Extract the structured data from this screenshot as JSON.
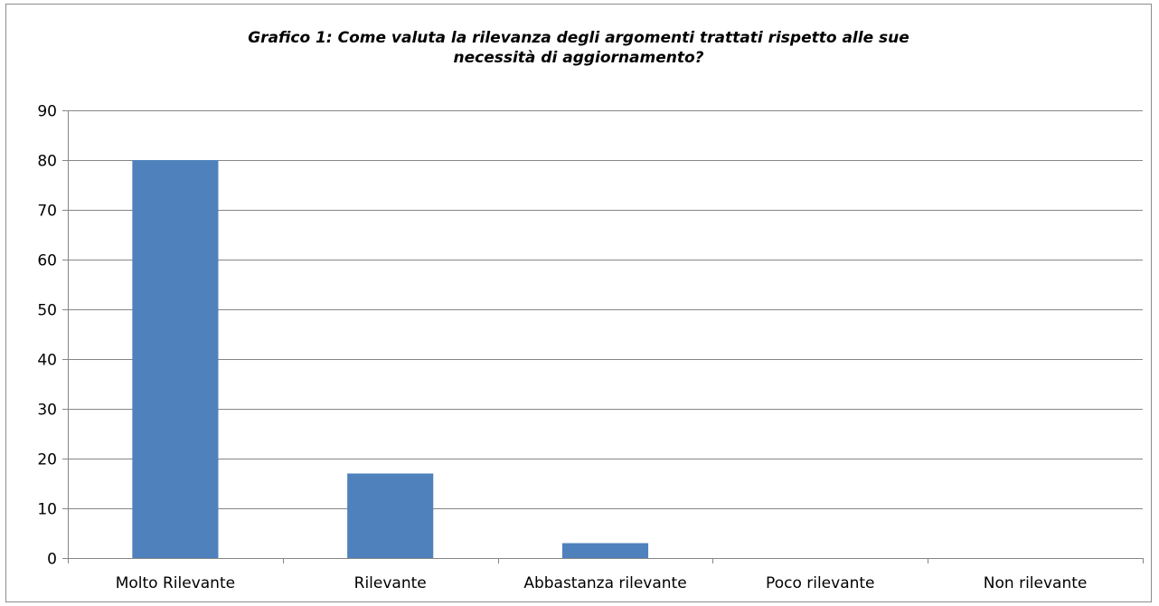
{
  "chart_data": {
    "type": "bar",
    "title": "Grafico 1: Come valuta la rilevanza degli argomenti trattati rispetto alle sue necessità di aggiornamento?",
    "categories": [
      "Molto Rilevante",
      "Rilevante",
      "Abbastanza rilevante",
      "Poco rilevante",
      "Non rilevante"
    ],
    "values": [
      80,
      17,
      3,
      0,
      0
    ],
    "ylim": [
      0,
      90
    ],
    "yticks": [
      0,
      10,
      20,
      30,
      40,
      50,
      60,
      70,
      80,
      90
    ],
    "xlabel": "",
    "ylabel": "",
    "grid": true,
    "legend": "none",
    "colors": {
      "bar": "#4F81BD",
      "grid": "#868686",
      "axis": "#868686"
    }
  }
}
